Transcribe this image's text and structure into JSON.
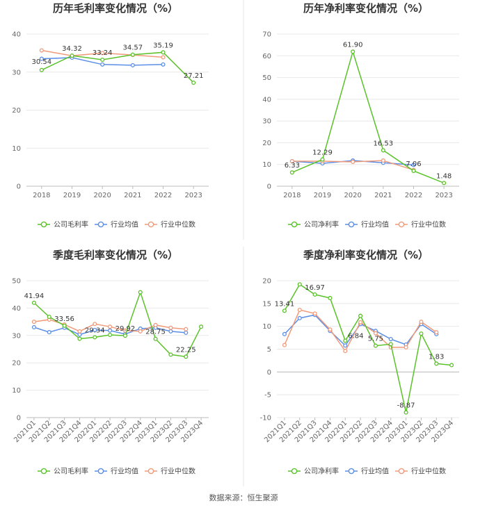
{
  "source": "数据来源：恒生聚源",
  "colors": {
    "company": "#5ac229",
    "industry_avg": "#5b8ee6",
    "industry_median": "#f19a7a"
  },
  "chart_data": [
    {
      "type": "line",
      "title": "历年毛利率变化情况（%）",
      "categories": [
        "2018",
        "2019",
        "2020",
        "2021",
        "2022",
        "2023"
      ],
      "ylim": [
        0,
        40
      ],
      "yticks": [
        0,
        10,
        20,
        30,
        40
      ],
      "series": [
        {
          "name": "公司毛利率",
          "key": "company",
          "values": [
            30.54,
            34.32,
            33.24,
            34.57,
            35.19,
            27.21
          ]
        },
        {
          "name": "行业均值",
          "key": "industry_avg",
          "values": [
            33.5,
            33.8,
            32.0,
            31.8,
            32.0,
            null
          ]
        },
        {
          "name": "行业中位数",
          "key": "industry_median",
          "values": [
            35.7,
            34.3,
            35.0,
            34.5,
            33.9,
            null
          ]
        }
      ],
      "data_labels": [
        {
          "series": 0,
          "index": 0,
          "text": "30.54",
          "pos": "below"
        },
        {
          "series": 0,
          "index": 1,
          "text": "34.32",
          "pos": "above"
        },
        {
          "series": 0,
          "index": 2,
          "text": "33.24",
          "pos": "above"
        },
        {
          "series": 0,
          "index": 3,
          "text": "34.57",
          "pos": "above"
        },
        {
          "series": 0,
          "index": 4,
          "text": "35.19",
          "pos": "above"
        },
        {
          "series": 0,
          "index": 5,
          "text": "27.21",
          "pos": "above"
        }
      ],
      "xlabels_rotated": false
    },
    {
      "type": "line",
      "title": "历年净利率变化情况（%）",
      "categories": [
        "2018",
        "2019",
        "2020",
        "2021",
        "2022",
        "2023"
      ],
      "ylim": [
        0,
        70
      ],
      "yticks": [
        0,
        10,
        20,
        30,
        40,
        50,
        60,
        70
      ],
      "series": [
        {
          "name": "公司净利率",
          "key": "company",
          "values": [
            6.33,
            12.29,
            61.9,
            16.53,
            7.06,
            1.48
          ]
        },
        {
          "name": "行业均值",
          "key": "industry_avg",
          "values": [
            11.5,
            10.5,
            11.8,
            10.8,
            9.8,
            null
          ]
        },
        {
          "name": "行业中位数",
          "key": "industry_median",
          "values": [
            11.5,
            11.5,
            11.2,
            11.8,
            7.5,
            null
          ]
        }
      ],
      "data_labels": [
        {
          "series": 0,
          "index": 0,
          "text": "6.33",
          "pos": "above"
        },
        {
          "series": 0,
          "index": 1,
          "text": "12.29",
          "pos": "above"
        },
        {
          "series": 0,
          "index": 2,
          "text": "61.90",
          "pos": "above"
        },
        {
          "series": 0,
          "index": 3,
          "text": "16.53",
          "pos": "above"
        },
        {
          "series": 0,
          "index": 4,
          "text": "7.06",
          "pos": "above"
        },
        {
          "series": 0,
          "index": 5,
          "text": "1.48",
          "pos": "above"
        }
      ],
      "xlabels_rotated": false
    },
    {
      "type": "line",
      "title": "季度毛利率变化情况（%）",
      "categories": [
        "2021Q1",
        "2021Q2",
        "2021Q3",
        "2021Q4",
        "2022Q1",
        "2022Q2",
        "2022Q3",
        "2022Q4",
        "2023Q1",
        "2023Q2",
        "2023Q3",
        "2023Q4"
      ],
      "ylim": [
        0,
        50
      ],
      "yticks": [
        0,
        10,
        20,
        30,
        40,
        50
      ],
      "series": [
        {
          "name": "公司毛利率",
          "key": "company",
          "values": [
            41.94,
            36.8,
            33.56,
            28.8,
            29.34,
            30.2,
            29.92,
            45.8,
            28.75,
            23.0,
            22.25,
            33.2
          ]
        },
        {
          "name": "行业均值",
          "key": "industry_avg",
          "values": [
            33.0,
            31.2,
            32.8,
            30.3,
            32.0,
            31.8,
            30.5,
            32.5,
            32.8,
            31.5,
            31.0,
            null
          ]
        },
        {
          "name": "行业中位数",
          "key": "industry_median",
          "values": [
            35.0,
            35.8,
            34.0,
            31.5,
            34.2,
            33.2,
            31.8,
            31.5,
            33.8,
            32.8,
            32.3,
            null
          ]
        }
      ],
      "data_labels": [
        {
          "series": 0,
          "index": 0,
          "text": "41.94",
          "pos": "above"
        },
        {
          "series": 0,
          "index": 2,
          "text": "33.56",
          "pos": "above"
        },
        {
          "series": 0,
          "index": 4,
          "text": "29.34",
          "pos": "above"
        },
        {
          "series": 0,
          "index": 6,
          "text": "29.92",
          "pos": "above"
        },
        {
          "series": 0,
          "index": 8,
          "text": "28.75",
          "pos": "above"
        },
        {
          "series": 0,
          "index": 10,
          "text": "22.25",
          "pos": "above"
        }
      ],
      "xlabels_rotated": true
    },
    {
      "type": "line",
      "title": "季度净利率变化情况（%）",
      "categories": [
        "2021Q1",
        "2021Q2",
        "2021Q3",
        "2021Q4",
        "2022Q1",
        "2022Q2",
        "2022Q3",
        "2022Q4",
        "2023Q1",
        "2023Q2",
        "2023Q3",
        "2023Q4"
      ],
      "ylim": [
        -10,
        20
      ],
      "yticks": [
        -10,
        -5,
        0,
        5,
        10,
        15,
        20
      ],
      "series": [
        {
          "name": "公司净利率",
          "key": "company",
          "values": [
            13.41,
            19.2,
            16.97,
            16.2,
            6.84,
            12.3,
            5.75,
            6.1,
            -8.87,
            8.4,
            1.83,
            1.5
          ]
        },
        {
          "name": "行业均值",
          "key": "industry_avg",
          "values": [
            8.3,
            11.8,
            12.5,
            9.0,
            5.8,
            10.5,
            9.0,
            7.2,
            6.0,
            10.5,
            8.3,
            null
          ]
        },
        {
          "name": "行业中位数",
          "key": "industry_median",
          "values": [
            5.9,
            13.6,
            12.8,
            9.3,
            4.6,
            10.9,
            8.5,
            5.4,
            5.4,
            11.0,
            8.7,
            null
          ]
        }
      ],
      "data_labels": [
        {
          "series": 0,
          "index": 0,
          "text": "13.41",
          "pos": "above"
        },
        {
          "series": 0,
          "index": 2,
          "text": "16.97",
          "pos": "above"
        },
        {
          "series": 0,
          "index": 4,
          "text": "6.84",
          "pos": "right"
        },
        {
          "series": 0,
          "index": 6,
          "text": "5.75",
          "pos": "above"
        },
        {
          "series": 0,
          "index": 8,
          "text": "-8.87",
          "pos": "above"
        },
        {
          "series": 0,
          "index": 10,
          "text": "1.83",
          "pos": "above"
        }
      ],
      "xlabels_rotated": true
    }
  ]
}
